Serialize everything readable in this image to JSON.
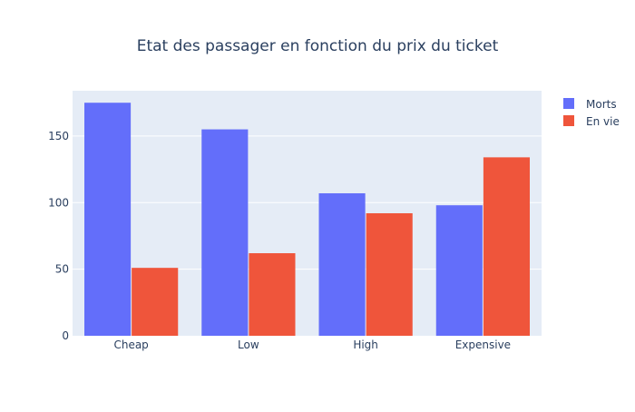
{
  "chart_data": {
    "type": "bar",
    "title": "Etat des passager en fonction du prix du ticket",
    "xlabel": "",
    "ylabel": "",
    "categories": [
      "Cheap",
      "Low",
      "High",
      "Expensive"
    ],
    "series": [
      {
        "name": "Morts",
        "values": [
          175,
          155,
          107,
          98
        ],
        "color": "#636efa"
      },
      {
        "name": "En vie",
        "values": [
          51,
          62,
          92,
          134
        ],
        "color": "#ef553b"
      }
    ],
    "ylim": [
      0,
      184
    ],
    "yticks": [
      0,
      50,
      100,
      150
    ],
    "grid": true,
    "legend_position": "top-right",
    "plot_background": "#e5ecf6",
    "text_color": "#2a3f5f"
  }
}
